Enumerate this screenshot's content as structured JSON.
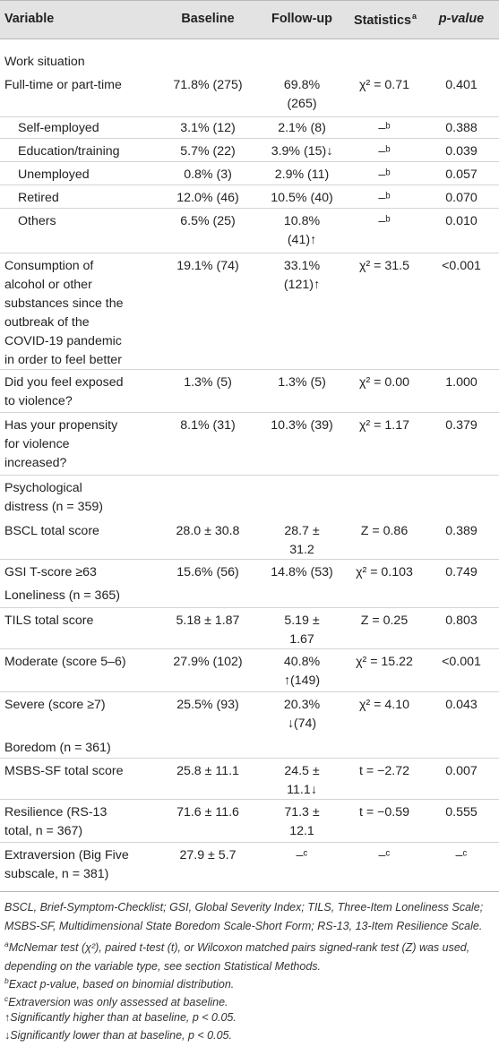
{
  "header": {
    "variable": "Variable",
    "baseline": "Baseline",
    "followup": "Follow-up",
    "statistics": "Statistics",
    "statistics_sup": "a",
    "pvalue": "p-value"
  },
  "rows": [
    {
      "variable": [
        "Work situation"
      ],
      "baseline": [
        ""
      ],
      "followup": [
        ""
      ],
      "stat": [
        ""
      ],
      "p": [
        ""
      ]
    },
    {
      "variable": [
        "Full-time or part-time"
      ],
      "baseline": [
        "71.8% (275)"
      ],
      "followup": [
        "69.8%",
        "(265)"
      ],
      "stat": [
        "χ² = 0.71"
      ],
      "p": [
        "0.401"
      ]
    },
    {
      "variable": [
        "Self-employed"
      ],
      "baseline": [
        "3.1% (12)"
      ],
      "followup": [
        "2.1% (8)"
      ],
      "stat": [
        "–ᵇ"
      ],
      "p": [
        "0.388"
      ]
    },
    {
      "variable": [
        "Education/training"
      ],
      "baseline": [
        "5.7% (22)"
      ],
      "followup": [
        "3.9% (15)↓"
      ],
      "stat": [
        "–ᵇ"
      ],
      "p": [
        "0.039"
      ]
    },
    {
      "variable": [
        "Unemployed"
      ],
      "baseline": [
        "0.8% (3)"
      ],
      "followup": [
        "2.9% (11)"
      ],
      "stat": [
        "–ᵇ"
      ],
      "p": [
        "0.057"
      ]
    },
    {
      "variable": [
        "Retired"
      ],
      "baseline": [
        "12.0% (46)"
      ],
      "followup": [
        "10.5% (40)"
      ],
      "stat": [
        "–ᵇ"
      ],
      "p": [
        "0.070"
      ]
    },
    {
      "variable": [
        "Others"
      ],
      "baseline": [
        "6.5% (25)"
      ],
      "followup": [
        "10.8%",
        "(41)↑"
      ],
      "stat": [
        "–ᵇ"
      ],
      "p": [
        "0.010"
      ]
    },
    {
      "variable": [
        "Consumption of",
        "alcohol or other",
        "substances since the",
        "outbreak of the",
        "COVID-19 pandemic",
        "in order to feel better"
      ],
      "baseline": [
        "19.1% (74)"
      ],
      "followup": [
        "33.1%",
        "(121)↑"
      ],
      "stat": [
        "χ² = 31.5"
      ],
      "p": [
        "<0.001"
      ]
    },
    {
      "variable": [
        "Did you feel exposed",
        "to violence?"
      ],
      "baseline": [
        "1.3% (5)"
      ],
      "followup": [
        "1.3% (5)"
      ],
      "stat": [
        "χ² = 0.00"
      ],
      "p": [
        "1.000"
      ]
    },
    {
      "variable": [
        "Has your propensity",
        "for violence",
        "increased?"
      ],
      "baseline": [
        "8.1% (31)"
      ],
      "followup": [
        "10.3% (39)"
      ],
      "stat": [
        "χ² = 1.17"
      ],
      "p": [
        "0.379"
      ]
    },
    {
      "variable": [
        "Psychological",
        "distress (n = 359)"
      ],
      "baseline": [
        ""
      ],
      "followup": [
        ""
      ],
      "stat": [
        ""
      ],
      "p": [
        ""
      ]
    },
    {
      "variable": [
        "BSCL total score"
      ],
      "baseline": [
        "28.0 ± 30.8"
      ],
      "followup": [
        "28.7 ±",
        "31.2"
      ],
      "stat": [
        "Z = 0.86"
      ],
      "p": [
        "0.389"
      ]
    },
    {
      "variable": [
        "GSI T-score ≥63"
      ],
      "baseline": [
        "15.6% (56)"
      ],
      "followup": [
        "14.8% (53)"
      ],
      "stat": [
        "χ² = 0.103"
      ],
      "p": [
        "0.749"
      ]
    },
    {
      "variable": [
        "Loneliness (n = 365)"
      ],
      "baseline": [
        ""
      ],
      "followup": [
        ""
      ],
      "stat": [
        ""
      ],
      "p": [
        ""
      ]
    },
    {
      "variable": [
        "TILS total score"
      ],
      "baseline": [
        "5.18 ± 1.87"
      ],
      "followup": [
        "5.19 ±",
        "1.67"
      ],
      "stat": [
        "Z = 0.25"
      ],
      "p": [
        "0.803"
      ]
    },
    {
      "variable": [
        "Moderate (score 5–6)"
      ],
      "baseline": [
        "27.9% (102)"
      ],
      "followup": [
        "40.8%",
        "↑(149)"
      ],
      "stat": [
        "χ² = 15.22"
      ],
      "p": [
        "<0.001"
      ]
    },
    {
      "variable": [
        "Severe (score ≥7)"
      ],
      "baseline": [
        "25.5% (93)"
      ],
      "followup": [
        "20.3%",
        "↓(74)"
      ],
      "stat": [
        "χ² = 4.10"
      ],
      "p": [
        "0.043"
      ]
    },
    {
      "variable": [
        "Boredom (n = 361)"
      ],
      "baseline": [
        ""
      ],
      "followup": [
        ""
      ],
      "stat": [
        ""
      ],
      "p": [
        ""
      ]
    },
    {
      "variable": [
        "MSBS-SF total score"
      ],
      "baseline": [
        "25.8 ± 11.1"
      ],
      "followup": [
        "24.5 ±",
        "11.1↓"
      ],
      "stat": [
        "t = −2.72"
      ],
      "p": [
        "0.007"
      ]
    },
    {
      "variable": [
        "Resilience (RS-13",
        "total, n = 367)"
      ],
      "baseline": [
        "71.6 ± 11.6"
      ],
      "followup": [
        "71.3 ±",
        "12.1"
      ],
      "stat": [
        "t = −0.59"
      ],
      "p": [
        "0.555"
      ]
    },
    {
      "variable": [
        "Extraversion (Big Five",
        "subscale, n = 381)"
      ],
      "baseline": [
        "27.9 ± 5.7"
      ],
      "followup": [
        "–ᶜ"
      ],
      "stat": [
        "–ᶜ"
      ],
      "p": [
        "–ᶜ"
      ]
    }
  ],
  "footnotes": {
    "abbrev": "BSCL, Brief-Symptom-Checklist; GSI, Global Severity Index; TILS, Three-Item Loneliness Scale; MSBS-SF, Multidimensional State Boredom Scale-Short Form; RS-13, 13-Item Resilience Scale.",
    "a_sup": "a",
    "a": "McNemar test (χ²), paired t-test (t), or Wilcoxon matched pairs signed-rank test (Z) was used, depending on the variable type, see section Statistical Methods.",
    "b_sup": "b",
    "b": "Exact p-value, based on binomial distribution.",
    "c_sup": "c",
    "c": "Extraversion was only assessed at baseline.",
    "up": "↑Significantly higher than at baseline, p < 0.05.",
    "down": "↓Significantly lower than at baseline, p < 0.05."
  }
}
